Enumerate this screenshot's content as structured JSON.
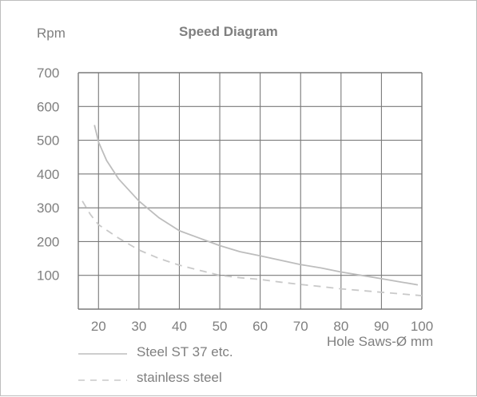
{
  "chart_data": {
    "type": "line",
    "title": "Speed Diagram",
    "ylabel": "Rpm",
    "xlabel": "Hole Saws-Ø mm",
    "xlim": [
      15,
      100
    ],
    "ylim": [
      0,
      700
    ],
    "x_ticks": [
      20,
      30,
      40,
      50,
      60,
      70,
      80,
      90,
      100
    ],
    "y_ticks": [
      100,
      200,
      300,
      400,
      500,
      600,
      700
    ],
    "x_tick_labels": [
      "20",
      "30",
      "40",
      "50",
      "60",
      "70",
      "80",
      "90",
      "100"
    ],
    "y_tick_labels": [
      "100",
      "200",
      "300",
      "400",
      "500",
      "600",
      "700"
    ],
    "grid": true,
    "series": [
      {
        "name": "Steel ST 37 etc.",
        "style": "solid",
        "color": "#bdbdbd",
        "x": [
          19,
          20,
          22,
          25,
          30,
          35,
          40,
          45,
          50,
          55,
          60,
          65,
          70,
          75,
          80,
          85,
          90,
          95,
          99
        ],
        "y": [
          545,
          495,
          440,
          385,
          320,
          270,
          232,
          210,
          188,
          170,
          158,
          145,
          132,
          122,
          110,
          100,
          90,
          80,
          72
        ]
      },
      {
        "name": "stainless steel",
        "style": "dashed",
        "color": "#c9c9c9",
        "x": [
          16,
          18,
          20,
          25,
          30,
          35,
          40,
          45,
          50,
          55,
          60,
          65,
          70,
          75,
          80,
          85,
          90,
          95,
          100
        ],
        "y": [
          320,
          280,
          250,
          210,
          175,
          150,
          130,
          115,
          100,
          93,
          88,
          80,
          73,
          67,
          60,
          55,
          50,
          45,
          40
        ]
      }
    ]
  }
}
